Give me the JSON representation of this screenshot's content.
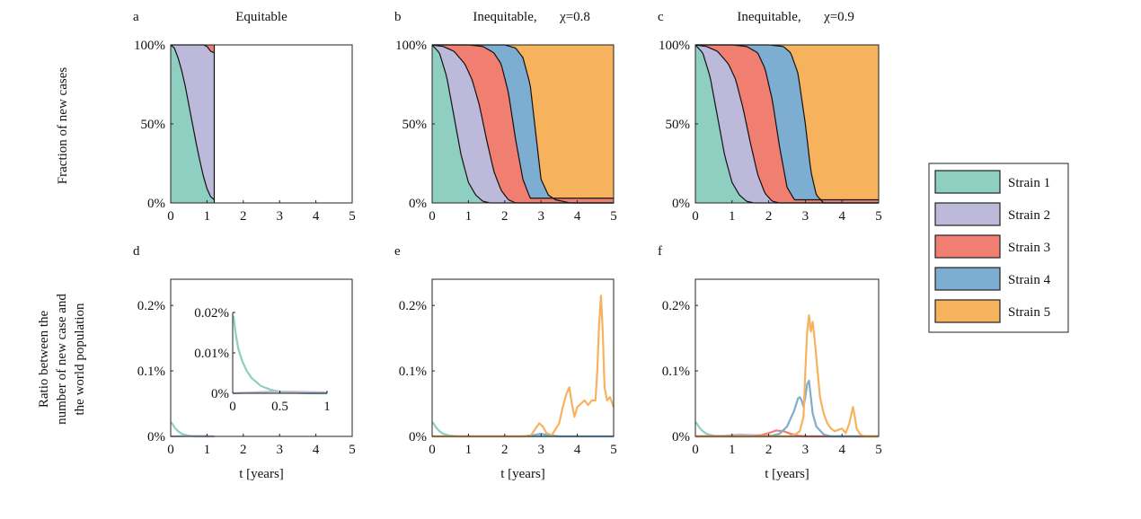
{
  "figure": {
    "row1_ylabel": "Fraction of new cases",
    "row2_ylabel_lines": [
      "Ratio between the",
      "number of new case and",
      "the world population"
    ],
    "xlabel": "t [years]"
  },
  "legend": {
    "placement": "right",
    "items": [
      {
        "label": "Strain 1",
        "color": "#8ecfc1"
      },
      {
        "label": "Strain 2",
        "color": "#bdb9da"
      },
      {
        "label": "Strain 3",
        "color": "#f07f72"
      },
      {
        "label": "Strain 4",
        "color": "#7dadd1"
      },
      {
        "label": "Strain 5",
        "color": "#f7b25e"
      }
    ]
  },
  "chart_data": [
    {
      "id": "a",
      "panel_label": "a",
      "title": "Equitable",
      "type": "area",
      "stacked": true,
      "xlim": [
        0,
        5
      ],
      "ylim": [
        0,
        1
      ],
      "xticks": [
        "0",
        "1",
        "2",
        "3",
        "4",
        "5"
      ],
      "yticks": [
        "0%",
        "50%",
        "100%"
      ],
      "ytick_values": [
        0,
        0.5,
        1
      ],
      "series": [
        {
          "name": "Strain 1",
          "x": [
            0,
            0.1,
            0.2,
            0.3,
            0.4,
            0.5,
            0.6,
            0.7,
            0.8,
            0.9,
            1.0,
            1.1,
            1.2
          ],
          "y": [
            1.0,
            0.98,
            0.92,
            0.84,
            0.74,
            0.62,
            0.5,
            0.38,
            0.27,
            0.17,
            0.09,
            0.04,
            0.02
          ]
        },
        {
          "name": "Strain 2",
          "x": [
            0,
            0.1,
            0.2,
            0.3,
            0.4,
            0.5,
            0.6,
            0.7,
            0.8,
            0.9,
            1.0,
            1.1,
            1.2
          ],
          "y": [
            0,
            0.02,
            0.08,
            0.16,
            0.26,
            0.38,
            0.5,
            0.62,
            0.73,
            0.83,
            0.9,
            0.92,
            0.93
          ]
        },
        {
          "name": "Strain 3",
          "x": [
            0,
            0.1,
            0.2,
            0.3,
            0.4,
            0.5,
            0.6,
            0.7,
            0.8,
            0.9,
            1.0,
            1.1,
            1.2
          ],
          "y": [
            0,
            0,
            0,
            0,
            0,
            0,
            0,
            0,
            0,
            0,
            0.01,
            0.04,
            0.05
          ]
        }
      ]
    },
    {
      "id": "b",
      "panel_label": "b",
      "title": "Inequitable,",
      "title_chi": "χ=0.8",
      "type": "area",
      "stacked": true,
      "xlim": [
        0,
        5
      ],
      "ylim": [
        0,
        1
      ],
      "xticks": [
        "0",
        "1",
        "2",
        "3",
        "4",
        "5"
      ],
      "yticks": [
        "0%",
        "50%",
        "100%"
      ],
      "ytick_values": [
        0,
        0.5,
        1
      ],
      "boundaries": [
        {
          "name": "Strain 1",
          "x": [
            0,
            0.2,
            0.4,
            0.6,
            0.8,
            1.0,
            1.2,
            1.4,
            1.6
          ],
          "y": [
            1,
            0.95,
            0.8,
            0.55,
            0.3,
            0.13,
            0.05,
            0.01,
            0
          ]
        },
        {
          "name": "Strain 2",
          "x": [
            0,
            0.3,
            0.6,
            0.9,
            1.1,
            1.3,
            1.5,
            1.7,
            1.9,
            2.1,
            2.3
          ],
          "y": [
            1,
            0.99,
            0.96,
            0.88,
            0.78,
            0.62,
            0.4,
            0.2,
            0.08,
            0.02,
            0
          ]
        },
        {
          "name": "Strain 3",
          "x": [
            0,
            0.5,
            1.0,
            1.4,
            1.7,
            1.9,
            2.1,
            2.3,
            2.5,
            2.7
          ],
          "y": [
            1,
            1,
            1,
            0.99,
            0.95,
            0.88,
            0.7,
            0.4,
            0.15,
            0.03
          ]
        },
        {
          "name": "Strain 4",
          "x": [
            0,
            0.8,
            1.6,
            2.0,
            2.3,
            2.5,
            2.7,
            2.85,
            3.0,
            3.2,
            3.4,
            3.6,
            3.8,
            5.0
          ],
          "y": [
            1,
            1,
            1,
            1,
            0.98,
            0.92,
            0.75,
            0.45,
            0.15,
            0.05,
            0.02,
            0.01,
            0,
            0
          ]
        }
      ]
    },
    {
      "id": "c",
      "panel_label": "c",
      "title": "Inequitable,",
      "title_chi": "χ=0.9",
      "type": "area",
      "stacked": true,
      "xlim": [
        0,
        5
      ],
      "ylim": [
        0,
        1
      ],
      "xticks": [
        "0",
        "1",
        "2",
        "3",
        "4",
        "5"
      ],
      "yticks": [
        "0%",
        "50%",
        "100%"
      ],
      "ytick_values": [
        0,
        0.5,
        1
      ],
      "boundaries": [
        {
          "name": "Strain 1",
          "x": [
            0,
            0.2,
            0.4,
            0.6,
            0.8,
            1.0,
            1.2,
            1.4,
            1.6
          ],
          "y": [
            1,
            0.95,
            0.8,
            0.55,
            0.3,
            0.13,
            0.05,
            0.01,
            0
          ]
        },
        {
          "name": "Strain 2",
          "x": [
            0,
            0.3,
            0.6,
            0.9,
            1.1,
            1.3,
            1.5,
            1.7,
            1.9,
            2.1,
            2.3
          ],
          "y": [
            1,
            0.99,
            0.96,
            0.88,
            0.78,
            0.6,
            0.38,
            0.18,
            0.06,
            0.01,
            0
          ]
        },
        {
          "name": "Strain 3",
          "x": [
            0,
            0.5,
            1.0,
            1.4,
            1.7,
            1.9,
            2.1,
            2.3,
            2.5,
            2.7
          ],
          "y": [
            1,
            1,
            1,
            0.99,
            0.95,
            0.85,
            0.65,
            0.35,
            0.1,
            0.02
          ]
        },
        {
          "name": "Strain 4",
          "x": [
            0,
            0.8,
            1.6,
            2.0,
            2.4,
            2.6,
            2.8,
            3.0,
            3.15,
            3.3,
            3.5,
            5.0
          ],
          "y": [
            1,
            1,
            1,
            1,
            0.99,
            0.95,
            0.82,
            0.5,
            0.2,
            0.05,
            0,
            0
          ]
        }
      ]
    },
    {
      "id": "d",
      "panel_label": "d",
      "type": "line",
      "xlim": [
        0,
        5
      ],
      "ylim": [
        0,
        0.24
      ],
      "xticks": [
        "0",
        "1",
        "2",
        "3",
        "4",
        "5"
      ],
      "yticks": [
        "0%",
        "0.1%",
        "0.2%"
      ],
      "ytick_values": [
        0,
        0.1,
        0.2
      ],
      "series": [
        {
          "name": "Strain 1",
          "x": [
            0,
            0.05,
            0.1,
            0.2,
            0.3,
            0.5,
            0.7,
            1.0,
            1.2
          ],
          "y": [
            0.022,
            0.019,
            0.014,
            0.008,
            0.004,
            0.001,
            0,
            0,
            0
          ]
        },
        {
          "name": "Strain 2",
          "x": [
            0,
            0.5,
            1.0,
            1.2
          ],
          "y": [
            0,
            0.0005,
            0.0008,
            0
          ]
        }
      ],
      "inset": {
        "xlim": [
          0,
          1
        ],
        "ylim": [
          0,
          0.02
        ],
        "xticks": [
          "0",
          "0.5",
          "1"
        ],
        "yticks": [
          "0%",
          "0.01%",
          "0.02%"
        ],
        "ytick_values": [
          0,
          0.01,
          0.02
        ],
        "series": [
          {
            "name": "Strain 1",
            "x": [
              0,
              0.01,
              0.03,
              0.06,
              0.1,
              0.15,
              0.2,
              0.3,
              0.4,
              0.5,
              0.6,
              0.8,
              1.0
            ],
            "y": [
              0.019,
              0.019,
              0.015,
              0.011,
              0.008,
              0.0055,
              0.0038,
              0.0018,
              0.0009,
              0.0004,
              0.0002,
              0,
              0
            ]
          },
          {
            "name": "Strain 2",
            "x": [
              0,
              0.2,
              0.4,
              0.6,
              0.8,
              1.0
            ],
            "y": [
              0,
              0.0002,
              0.0004,
              0.0004,
              0.0003,
              0.0002
            ]
          }
        ]
      }
    },
    {
      "id": "e",
      "panel_label": "e",
      "type": "line",
      "xlim": [
        0,
        5
      ],
      "ylim": [
        0,
        0.24
      ],
      "xticks": [
        "0",
        "1",
        "2",
        "3",
        "4",
        "5"
      ],
      "yticks": [
        "0%",
        "0.1%",
        "0.2%"
      ],
      "ytick_values": [
        0,
        0.1,
        0.2
      ],
      "series": [
        {
          "name": "Strain 1",
          "x": [
            0,
            0.05,
            0.1,
            0.2,
            0.3,
            0.5,
            0.7,
            1.0,
            5.0
          ],
          "y": [
            0.022,
            0.019,
            0.014,
            0.008,
            0.004,
            0.001,
            0,
            0,
            0
          ]
        },
        {
          "name": "Strain 4",
          "x": [
            0,
            2.5,
            2.8,
            3.0,
            3.2,
            3.5,
            5.0
          ],
          "y": [
            0,
            0,
            0.002,
            0.004,
            0.002,
            0,
            0
          ]
        },
        {
          "name": "Strain 5",
          "x": [
            0,
            2.7,
            2.85,
            2.95,
            3.05,
            3.15,
            3.3,
            3.5,
            3.6,
            3.7,
            3.78,
            3.85,
            3.92,
            4.0,
            4.1,
            4.2,
            4.3,
            4.4,
            4.5,
            4.55,
            4.6,
            4.65,
            4.7,
            4.75,
            4.82,
            4.9,
            5.0
          ],
          "y": [
            0,
            0,
            0.012,
            0.02,
            0.015,
            0.005,
            0.002,
            0.02,
            0.045,
            0.065,
            0.075,
            0.05,
            0.03,
            0.045,
            0.05,
            0.055,
            0.048,
            0.055,
            0.055,
            0.1,
            0.17,
            0.215,
            0.16,
            0.075,
            0.055,
            0.06,
            0.045
          ]
        }
      ]
    },
    {
      "id": "f",
      "panel_label": "f",
      "type": "line",
      "xlim": [
        0,
        5
      ],
      "ylim": [
        0,
        0.24
      ],
      "xticks": [
        "0",
        "1",
        "2",
        "3",
        "4",
        "5"
      ],
      "yticks": [
        "0%",
        "0.1%",
        "0.2%"
      ],
      "ytick_values": [
        0,
        0.1,
        0.2
      ],
      "series": [
        {
          "name": "Strain 1",
          "x": [
            0,
            0.05,
            0.1,
            0.2,
            0.3,
            0.5,
            0.7,
            1.0,
            5.0
          ],
          "y": [
            0.022,
            0.019,
            0.014,
            0.008,
            0.004,
            0.001,
            0,
            0,
            0
          ]
        },
        {
          "name": "Strain 2",
          "x": [
            0,
            0.8,
            1.2,
            1.6,
            2.0,
            2.4,
            5.0
          ],
          "y": [
            0,
            0.001,
            0.003,
            0.002,
            0.001,
            0,
            0
          ]
        },
        {
          "name": "Strain 3",
          "x": [
            0,
            1.5,
            1.8,
            2.0,
            2.2,
            2.4,
            2.6,
            2.8,
            3.0,
            5.0
          ],
          "y": [
            0,
            0,
            0.002,
            0.005,
            0.009,
            0.008,
            0.004,
            0.001,
            0,
            0
          ]
        },
        {
          "name": "Strain 4",
          "x": [
            0,
            2.0,
            2.3,
            2.5,
            2.7,
            2.8,
            2.85,
            2.9,
            2.95,
            3.0,
            3.05,
            3.1,
            3.15,
            3.2,
            3.3,
            3.5,
            3.7,
            5.0
          ],
          "y": [
            0,
            0,
            0.004,
            0.015,
            0.04,
            0.058,
            0.06,
            0.055,
            0.045,
            0.06,
            0.08,
            0.085,
            0.06,
            0.035,
            0.015,
            0.003,
            0,
            0
          ]
        },
        {
          "name": "Strain 5",
          "x": [
            0,
            2.5,
            2.7,
            2.85,
            2.95,
            3.0,
            3.05,
            3.1,
            3.15,
            3.2,
            3.25,
            3.3,
            3.4,
            3.5,
            3.6,
            3.7,
            3.8,
            3.9,
            4.0,
            4.1,
            4.2,
            4.3,
            4.35,
            4.4,
            4.5,
            4.6,
            4.8,
            5.0
          ],
          "y": [
            0,
            0,
            0.002,
            0.008,
            0.03,
            0.1,
            0.16,
            0.185,
            0.16,
            0.175,
            0.15,
            0.12,
            0.06,
            0.035,
            0.02,
            0.012,
            0.008,
            0.01,
            0.012,
            0.005,
            0.02,
            0.045,
            0.03,
            0.012,
            0.003,
            0,
            0,
            0
          ]
        }
      ]
    }
  ]
}
